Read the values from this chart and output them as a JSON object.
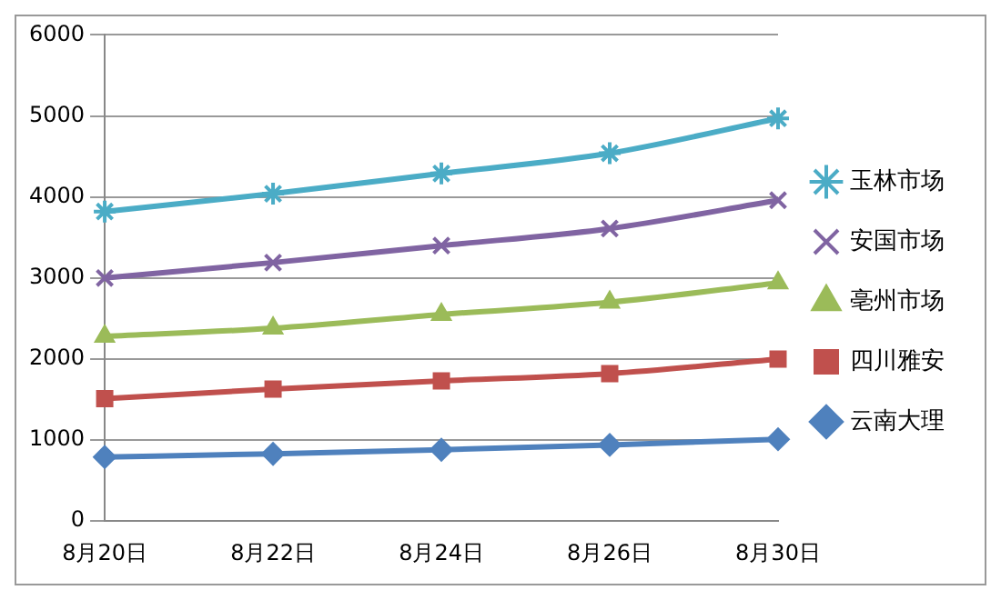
{
  "chart_data": {
    "type": "line",
    "categories": [
      "8月20日",
      "8月22日",
      "8月24日",
      "8月26日",
      "8月30日"
    ],
    "series": [
      {
        "name": "玉林市场",
        "color": "#4bacc6",
        "marker": "cross",
        "values": [
          3820,
          4040,
          4290,
          4540,
          4970
        ]
      },
      {
        "name": "安国市场",
        "color": "#8064a2",
        "marker": "cross",
        "values": [
          3000,
          3190,
          3400,
          3610,
          3960
        ]
      },
      {
        "name": "亳州市场",
        "color": "#9bbb59",
        "marker": "triangle",
        "values": [
          2280,
          2380,
          2550,
          2700,
          2940
        ]
      },
      {
        "name": "四川雅安",
        "color": "#c0504d",
        "marker": "square",
        "values": [
          1510,
          1630,
          1730,
          1820,
          2000
        ]
      },
      {
        "name": "云南大理",
        "color": "#4f81bd",
        "marker": "diamond",
        "values": [
          790,
          830,
          880,
          940,
          1010
        ]
      }
    ],
    "ylim": [
      0,
      6000
    ],
    "yticks": [
      0,
      1000,
      2000,
      3000,
      4000,
      5000,
      6000
    ],
    "grid": "y",
    "legend": "right",
    "line_style": "solid"
  }
}
